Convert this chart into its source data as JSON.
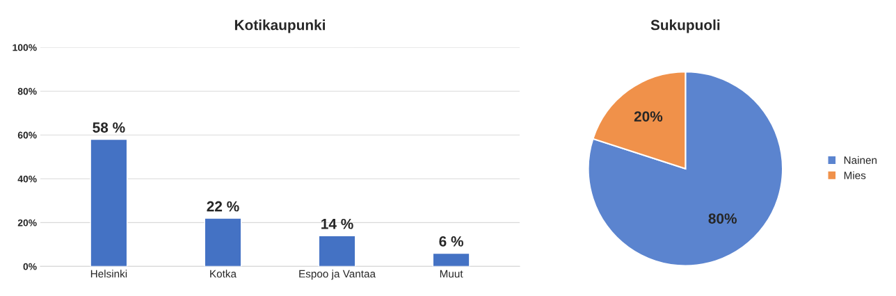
{
  "chart_data": [
    {
      "type": "bar",
      "title": "Kotikaupunki",
      "categories": [
        "Helsinki",
        "Kotka",
        "Espoo ja Vantaa",
        "Muut"
      ],
      "values": [
        58,
        22,
        14,
        6
      ],
      "value_labels": [
        "58 %",
        "22 %",
        "14 %",
        "6 %"
      ],
      "color": "#4472c4",
      "ylim": [
        0,
        100
      ],
      "yticks": [
        {
          "value": 0,
          "label": "0%"
        },
        {
          "value": 20,
          "label": "20%"
        },
        {
          "value": 40,
          "label": "40%"
        },
        {
          "value": 60,
          "label": "60%"
        },
        {
          "value": 80,
          "label": "80%"
        },
        {
          "value": 100,
          "label": "100%"
        }
      ],
      "grid": "y"
    },
    {
      "type": "pie",
      "title": "Sukupuoli",
      "categories": [
        "Nainen",
        "Mies"
      ],
      "values": [
        80,
        20
      ],
      "value_labels": [
        "80%",
        "20%"
      ],
      "colors": [
        "#5b84cf",
        "#f0914a"
      ],
      "legend": "right"
    }
  ]
}
